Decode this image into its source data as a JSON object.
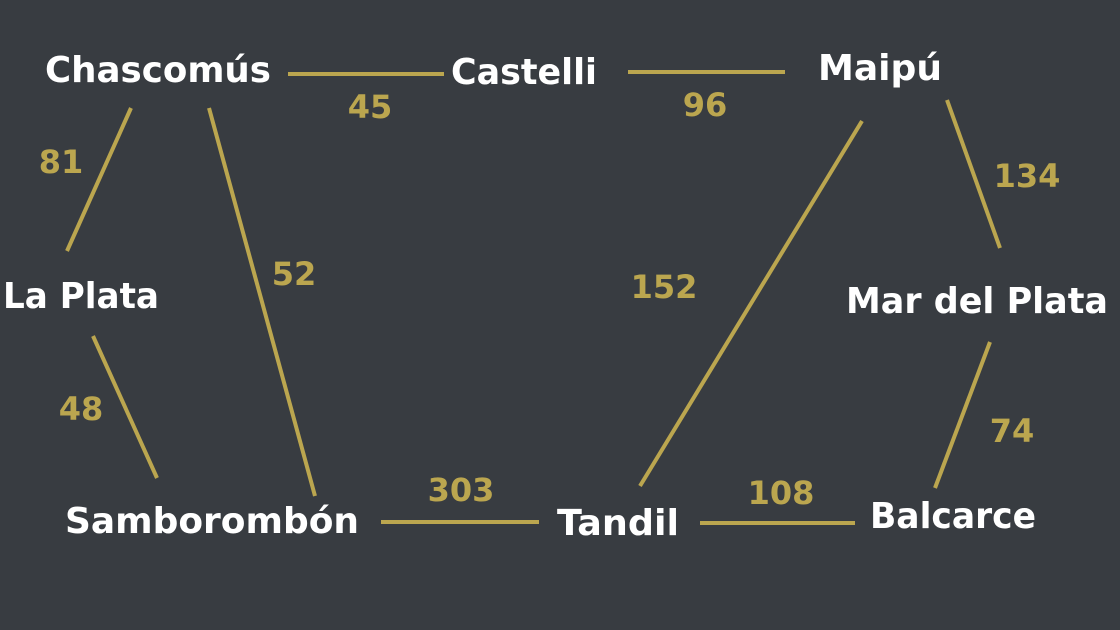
{
  "colors": {
    "background": "#383c41",
    "node_text": "#ffffff",
    "edge": "#bba64f",
    "weight_text": "#bba64f"
  },
  "nodes": [
    {
      "id": "chascomus",
      "label": "Chascomús"
    },
    {
      "id": "castelli",
      "label": "Castelli"
    },
    {
      "id": "maipu",
      "label": "Maipú"
    },
    {
      "id": "laplata",
      "label": "La Plata"
    },
    {
      "id": "mardelplata",
      "label": "Mar del Plata"
    },
    {
      "id": "samborombon",
      "label": "Samborombón"
    },
    {
      "id": "tandil",
      "label": "Tandil"
    },
    {
      "id": "balcarce",
      "label": "Balcarce"
    }
  ],
  "edges": [
    {
      "id": "chascomus-castelli",
      "from": "Chascomús",
      "to": "Castelli",
      "weight": "45"
    },
    {
      "id": "castelli-maipu",
      "from": "Castelli",
      "to": "Maipú",
      "weight": "96"
    },
    {
      "id": "chascomus-laplata",
      "from": "Chascomús",
      "to": "La Plata",
      "weight": "81"
    },
    {
      "id": "chascomus-samborombon",
      "from": "Chascomús",
      "to": "Samborombón",
      "weight": "52"
    },
    {
      "id": "maipu-mardelplata",
      "from": "Maipú",
      "to": "Mar del Plata",
      "weight": "134"
    },
    {
      "id": "maipu-tandil",
      "from": "Maipú",
      "to": "Tandil",
      "weight": "152"
    },
    {
      "id": "laplata-samborombon",
      "from": "La Plata",
      "to": "Samborombón",
      "weight": "48"
    },
    {
      "id": "samborombon-tandil",
      "from": "Samborombón",
      "to": "Tandil",
      "weight": "303"
    },
    {
      "id": "tandil-balcarce",
      "from": "Tandil",
      "to": "Balcarce",
      "weight": "108"
    },
    {
      "id": "mardelplata-balcarce",
      "from": "Mar del Plata",
      "to": "Balcarce",
      "weight": "74"
    }
  ]
}
